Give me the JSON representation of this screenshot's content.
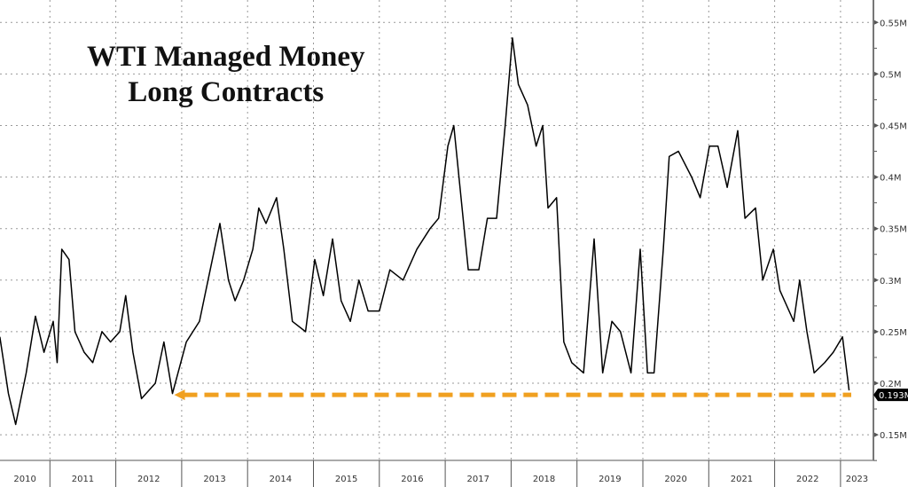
{
  "chart_data": {
    "type": "line",
    "title_line1": "WTI Managed Money",
    "title_line2": "Long Contracts",
    "xlabel": "",
    "ylabel": "",
    "x_tick_labels": [
      "2010",
      "2011",
      "2012",
      "2013",
      "2014",
      "2015",
      "2016",
      "2017",
      "2018",
      "2019",
      "2020",
      "2021",
      "2022",
      "2023"
    ],
    "y_tick_labels": [
      "0.15M",
      "0.2M",
      "0.25M",
      "0.3M",
      "0.35M",
      "0.4M",
      "0.45M",
      "0.5M",
      "0.55M"
    ],
    "y_ticks": [
      0.15,
      0.2,
      0.25,
      0.3,
      0.35,
      0.4,
      0.45,
      0.5,
      0.55
    ],
    "ylim": [
      0.12,
      0.57
    ],
    "xlim": [
      2010,
      2023.35
    ],
    "grid": true,
    "series": [
      {
        "name": "WTI Managed Money Long Contracts (millions)",
        "color": "#000000",
        "x": [
          2010.24,
          2010.37,
          2010.48,
          2010.64,
          2010.78,
          2010.91,
          2011.05,
          2011.11,
          2011.18,
          2011.29,
          2011.38,
          2011.52,
          2011.65,
          2011.79,
          2011.92,
          2012.06,
          2012.15,
          2012.26,
          2012.39,
          2012.6,
          2012.73,
          2012.86,
          2013.07,
          2013.27,
          2013.4,
          2013.58,
          2013.71,
          2013.81,
          2013.94,
          2014.08,
          2014.17,
          2014.28,
          2014.44,
          2014.55,
          2014.68,
          2014.88,
          2015.02,
          2015.15,
          2015.29,
          2015.42,
          2015.56,
          2015.69,
          2015.83,
          2016.0,
          2016.16,
          2016.36,
          2016.57,
          2016.77,
          2016.9,
          2017.04,
          2017.13,
          2017.24,
          2017.35,
          2017.51,
          2017.64,
          2017.78,
          2017.91,
          2018.02,
          2018.11,
          2018.25,
          2018.38,
          2018.48,
          2018.56,
          2018.69,
          2018.8,
          2018.92,
          2019.1,
          2019.26,
          2019.39,
          2019.53,
          2019.66,
          2019.82,
          2019.96,
          2020.07,
          2020.17,
          2020.31,
          2020.4,
          2020.54,
          2020.74,
          2020.87,
          2021.01,
          2021.14,
          2021.28,
          2021.44,
          2021.55,
          2021.71,
          2021.82,
          2021.98,
          2022.08,
          2022.29,
          2022.38,
          2022.49,
          2022.6,
          2022.76,
          2022.89,
          2023.03,
          2023.13
        ],
        "y": [
          0.245,
          0.19,
          0.16,
          0.21,
          0.265,
          0.23,
          0.26,
          0.22,
          0.33,
          0.32,
          0.25,
          0.23,
          0.22,
          0.25,
          0.24,
          0.25,
          0.285,
          0.23,
          0.185,
          0.2,
          0.24,
          0.19,
          0.24,
          0.26,
          0.3,
          0.355,
          0.3,
          0.28,
          0.3,
          0.33,
          0.37,
          0.355,
          0.38,
          0.33,
          0.26,
          0.25,
          0.32,
          0.285,
          0.34,
          0.28,
          0.26,
          0.3,
          0.27,
          0.27,
          0.31,
          0.3,
          0.33,
          0.35,
          0.36,
          0.43,
          0.45,
          0.38,
          0.31,
          0.31,
          0.36,
          0.36,
          0.45,
          0.535,
          0.49,
          0.47,
          0.43,
          0.45,
          0.37,
          0.38,
          0.24,
          0.22,
          0.21,
          0.34,
          0.21,
          0.26,
          0.25,
          0.21,
          0.33,
          0.21,
          0.21,
          0.33,
          0.42,
          0.425,
          0.4,
          0.38,
          0.43,
          0.43,
          0.39,
          0.445,
          0.36,
          0.37,
          0.3,
          0.33,
          0.29,
          0.26,
          0.3,
          0.25,
          0.21,
          0.22,
          0.23,
          0.245,
          0.193
        ]
      }
    ],
    "annotations": {
      "last_value_label": "0.193M",
      "last_value": 0.193,
      "reference_line_value": 0.193,
      "reference_line_color": "#f0a020",
      "reference_line_from": 2012.86
    }
  }
}
